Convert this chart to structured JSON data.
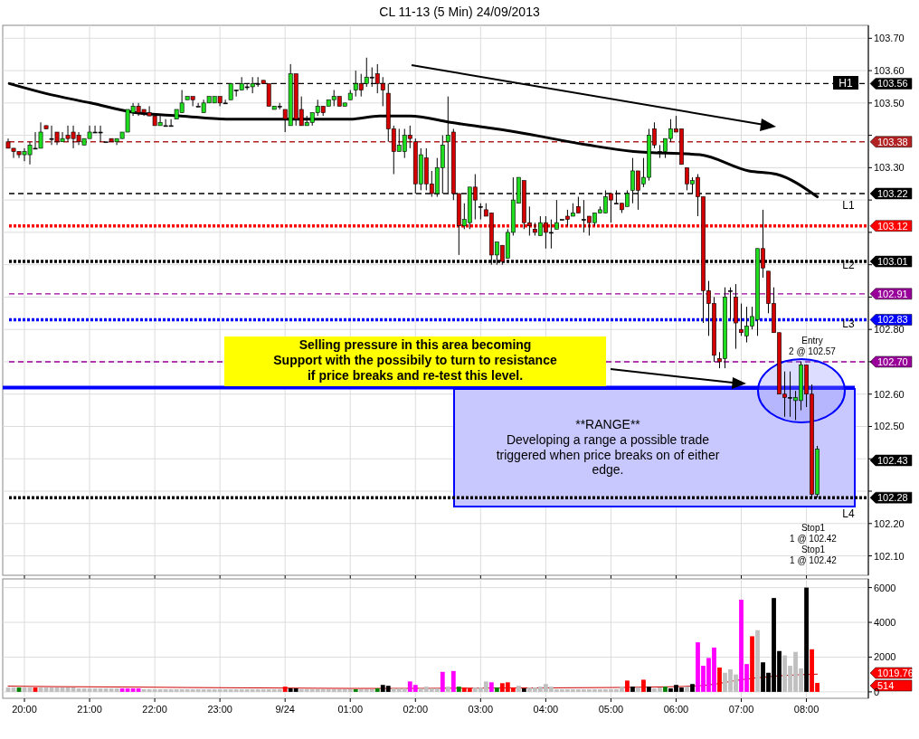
{
  "chart_data": [
    {
      "type": "candlestick",
      "title": "CL 11-13 (5 Min)  24/09/2013",
      "xlim": [
        "2013-09-23T19:40",
        "2013-09-24T08:57"
      ],
      "ylim": [
        102.04,
        103.74
      ],
      "xticks": [
        {
          "value": "2013-09-23T20:00",
          "label": null
        },
        {
          "value": "2013-09-23T21:00",
          "label": null
        },
        {
          "value": "2013-09-23T22:00",
          "label": null
        },
        {
          "value": "2013-09-23T23:00",
          "label": null
        },
        {
          "value": "2013-09-24T00:00",
          "label": null
        },
        {
          "value": "2013-09-24T01:00",
          "label": null
        },
        {
          "value": "2013-09-24T02:00",
          "label": null
        },
        {
          "value": "2013-09-24T03:00",
          "label": null
        },
        {
          "value": "2013-09-24T04:00",
          "label": null
        },
        {
          "value": "2013-09-24T05:00",
          "label": null
        },
        {
          "value": "2013-09-24T06:00",
          "label": null
        },
        {
          "value": "2013-09-24T07:00",
          "label": null
        },
        {
          "value": "2013-09-24T08:00",
          "label": null
        }
      ],
      "yticks": [
        {
          "value": 102.1,
          "label": "102.10"
        },
        {
          "value": 102.2,
          "label": "102.20"
        },
        {
          "value": 102.3,
          "label": null
        },
        {
          "value": 102.4,
          "label": null
        },
        {
          "value": 102.5,
          "label": "102.50"
        },
        {
          "value": 102.6,
          "label": "102.60"
        },
        {
          "value": 102.7,
          "label": null
        },
        {
          "value": 102.8,
          "label": "102.80"
        },
        {
          "value": 102.9,
          "label": null
        },
        {
          "value": 103.0,
          "label": null
        },
        {
          "value": 103.1,
          "label": null
        },
        {
          "value": 103.2,
          "label": null
        },
        {
          "value": 103.3,
          "label": "103.30"
        },
        {
          "value": 103.4,
          "label": null
        },
        {
          "value": 103.5,
          "label": "103.50"
        },
        {
          "value": 103.6,
          "label": "103.60"
        },
        {
          "value": 103.7,
          "label": "103.70"
        }
      ],
      "tick_labels": "y",
      "grid": true,
      "x": [
        "2013-09-23T19:45",
        "2013-09-23T19:50",
        "2013-09-23T19:55",
        "2013-09-23T20:00",
        "2013-09-23T20:05",
        "2013-09-23T20:10",
        "2013-09-23T20:15",
        "2013-09-23T20:20",
        "2013-09-23T20:25",
        "2013-09-23T20:30",
        "2013-09-23T20:35",
        "2013-09-23T20:40",
        "2013-09-23T20:45",
        "2013-09-23T20:50",
        "2013-09-23T20:55",
        "2013-09-23T21:00",
        "2013-09-23T21:05",
        "2013-09-23T21:10",
        "2013-09-23T21:15",
        "2013-09-23T21:20",
        "2013-09-23T21:25",
        "2013-09-23T21:30",
        "2013-09-23T21:35",
        "2013-09-23T21:40",
        "2013-09-23T21:45",
        "2013-09-23T21:50",
        "2013-09-23T21:55",
        "2013-09-23T22:00",
        "2013-09-23T22:05",
        "2013-09-23T22:10",
        "2013-09-23T22:15",
        "2013-09-23T22:20",
        "2013-09-23T22:25",
        "2013-09-23T22:30",
        "2013-09-23T22:35",
        "2013-09-23T22:40",
        "2013-09-23T22:45",
        "2013-09-23T22:50",
        "2013-09-23T22:55",
        "2013-09-23T23:00",
        "2013-09-23T23:05",
        "2013-09-23T23:10",
        "2013-09-23T23:15",
        "2013-09-23T23:20",
        "2013-09-23T23:25",
        "2013-09-23T23:30",
        "2013-09-23T23:35",
        "2013-09-23T23:40",
        "2013-09-23T23:45",
        "2013-09-23T23:50",
        "2013-09-23T23:55",
        "2013-09-24T00:00",
        "2013-09-24T00:05",
        "2013-09-24T00:10",
        "2013-09-24T00:15",
        "2013-09-24T00:20",
        "2013-09-24T00:25",
        "2013-09-24T00:30",
        "2013-09-24T00:35",
        "2013-09-24T00:40",
        "2013-09-24T00:45",
        "2013-09-24T00:50",
        "2013-09-24T00:55",
        "2013-09-24T01:00",
        "2013-09-24T01:05",
        "2013-09-24T01:10",
        "2013-09-24T01:15",
        "2013-09-24T01:20",
        "2013-09-24T01:25",
        "2013-09-24T01:30",
        "2013-09-24T01:35",
        "2013-09-24T01:40",
        "2013-09-24T01:45",
        "2013-09-24T01:50",
        "2013-09-24T01:55",
        "2013-09-24T02:00",
        "2013-09-24T02:05",
        "2013-09-24T02:10",
        "2013-09-24T02:15",
        "2013-09-24T02:20",
        "2013-09-24T02:25",
        "2013-09-24T02:30",
        "2013-09-24T02:35",
        "2013-09-24T02:40",
        "2013-09-24T02:45",
        "2013-09-24T02:50",
        "2013-09-24T02:55",
        "2013-09-24T03:00",
        "2013-09-24T03:05",
        "2013-09-24T03:10",
        "2013-09-24T03:15",
        "2013-09-24T03:20",
        "2013-09-24T03:25",
        "2013-09-24T03:30",
        "2013-09-24T03:35",
        "2013-09-24T03:40",
        "2013-09-24T03:45",
        "2013-09-24T03:50",
        "2013-09-24T03:55",
        "2013-09-24T04:00",
        "2013-09-24T04:05",
        "2013-09-24T04:10",
        "2013-09-24T04:15",
        "2013-09-24T04:20",
        "2013-09-24T04:25",
        "2013-09-24T04:30",
        "2013-09-24T04:35",
        "2013-09-24T04:40",
        "2013-09-24T04:45",
        "2013-09-24T04:50",
        "2013-09-24T04:55",
        "2013-09-24T05:00",
        "2013-09-24T05:05",
        "2013-09-24T05:10",
        "2013-09-24T05:15",
        "2013-09-24T05:20",
        "2013-09-24T05:25",
        "2013-09-24T05:30",
        "2013-09-24T05:35",
        "2013-09-24T05:40",
        "2013-09-24T05:45",
        "2013-09-24T05:50",
        "2013-09-24T05:55",
        "2013-09-24T06:00",
        "2013-09-24T06:05",
        "2013-09-24T06:10",
        "2013-09-24T06:15",
        "2013-09-24T06:20",
        "2013-09-24T06:25",
        "2013-09-24T06:30",
        "2013-09-24T06:35",
        "2013-09-24T06:40",
        "2013-09-24T06:45",
        "2013-09-24T06:50",
        "2013-09-24T06:55",
        "2013-09-24T07:00",
        "2013-09-24T07:05",
        "2013-09-24T07:10",
        "2013-09-24T07:15",
        "2013-09-24T07:20",
        "2013-09-24T07:25",
        "2013-09-24T07:30",
        "2013-09-24T07:35",
        "2013-09-24T07:40",
        "2013-09-24T07:45",
        "2013-09-24T07:50",
        "2013-09-24T07:55",
        "2013-09-24T08:00",
        "2013-09-24T08:05",
        "2013-09-24T08:10"
      ],
      "ohlc": [
        [
          103.38,
          103.39,
          103.36,
          103.36
        ],
        [
          103.36,
          103.36,
          103.33,
          103.35
        ],
        [
          103.35,
          103.35,
          103.33,
          103.34
        ],
        [
          103.34,
          103.36,
          103.32,
          103.35
        ],
        [
          103.34,
          103.38,
          103.31,
          103.37
        ],
        [
          103.36,
          103.41,
          103.36,
          103.36
        ],
        [
          103.36,
          103.44,
          103.36,
          103.41
        ],
        [
          103.43,
          103.43,
          103.42,
          103.42
        ],
        [
          103.39,
          103.43,
          103.37,
          103.39
        ],
        [
          103.41,
          103.41,
          103.37,
          103.38
        ],
        [
          103.38,
          103.41,
          103.38,
          103.39
        ],
        [
          103.4,
          103.43,
          103.38,
          103.39
        ],
        [
          103.41,
          103.43,
          103.36,
          103.39
        ],
        [
          103.4,
          103.41,
          103.37,
          103.38
        ],
        [
          103.37,
          103.39,
          103.37,
          103.39
        ],
        [
          103.39,
          103.43,
          103.39,
          103.41
        ],
        [
          103.41,
          103.43,
          103.41,
          103.41
        ],
        [
          103.41,
          103.43,
          103.38,
          103.41
        ],
        [
          103.38,
          103.38,
          103.38,
          103.38
        ],
        [
          103.39,
          103.39,
          103.38,
          103.38
        ],
        [
          103.38,
          103.39,
          103.37,
          103.39
        ],
        [
          103.39,
          103.41,
          103.39,
          103.41
        ],
        [
          103.41,
          103.48,
          103.41,
          103.48
        ],
        [
          103.47,
          103.5,
          103.46,
          103.49
        ],
        [
          103.49,
          103.5,
          103.46,
          103.47
        ],
        [
          103.48,
          103.48,
          103.46,
          103.47
        ],
        [
          103.47,
          103.49,
          103.46,
          103.46
        ],
        [
          103.46,
          103.46,
          103.43,
          103.43
        ],
        [
          103.43,
          103.46,
          103.43,
          103.44
        ],
        [
          103.43,
          103.45,
          103.43,
          103.43
        ],
        [
          103.43,
          103.45,
          103.43,
          103.43
        ],
        [
          103.45,
          103.48,
          103.45,
          103.48
        ],
        [
          103.47,
          103.54,
          103.47,
          103.5
        ],
        [
          103.51,
          103.52,
          103.51,
          103.52
        ],
        [
          103.52,
          103.52,
          103.49,
          103.51
        ],
        [
          103.49,
          103.5,
          103.49,
          103.49
        ],
        [
          103.47,
          103.51,
          103.47,
          103.5
        ],
        [
          103.5,
          103.52,
          103.5,
          103.52
        ],
        [
          103.5,
          103.52,
          103.5,
          103.52
        ],
        [
          103.52,
          103.52,
          103.49,
          103.5
        ],
        [
          103.5,
          103.51,
          103.5,
          103.5
        ],
        [
          103.51,
          103.56,
          103.51,
          103.56
        ],
        [
          103.54,
          103.54,
          103.52,
          103.54
        ],
        [
          103.54,
          103.58,
          103.54,
          103.56
        ],
        [
          103.55,
          103.56,
          103.54,
          103.55
        ],
        [
          103.55,
          103.58,
          103.53,
          103.56
        ],
        [
          103.56,
          103.58,
          103.55,
          103.56
        ],
        [
          103.57,
          103.57,
          103.56,
          103.56
        ],
        [
          103.56,
          103.56,
          103.49,
          103.49
        ],
        [
          103.48,
          103.49,
          103.48,
          103.49
        ],
        [
          103.49,
          103.5,
          103.48,
          103.49
        ],
        [
          103.48,
          103.48,
          103.41,
          103.45
        ],
        [
          103.43,
          103.62,
          103.43,
          103.59
        ],
        [
          103.59,
          103.59,
          103.43,
          103.45
        ],
        [
          103.48,
          103.52,
          103.43,
          103.43
        ],
        [
          103.43,
          103.46,
          103.43,
          103.44
        ],
        [
          103.44,
          103.47,
          103.43,
          103.47
        ],
        [
          103.47,
          103.51,
          103.46,
          103.49
        ],
        [
          103.49,
          103.49,
          103.46,
          103.47
        ],
        [
          103.49,
          103.51,
          103.49,
          103.51
        ],
        [
          103.51,
          103.54,
          103.49,
          103.52
        ],
        [
          103.52,
          103.52,
          103.49,
          103.49
        ],
        [
          103.49,
          103.5,
          103.49,
          103.5
        ],
        [
          103.51,
          103.54,
          103.51,
          103.53
        ],
        [
          103.54,
          103.6,
          103.52,
          103.56
        ],
        [
          103.56,
          103.59,
          103.52,
          103.54
        ],
        [
          103.56,
          103.64,
          103.55,
          103.58
        ],
        [
          103.58,
          103.61,
          103.55,
          103.58
        ],
        [
          103.59,
          103.62,
          103.53,
          103.56
        ],
        [
          103.56,
          103.58,
          103.49,
          103.54
        ],
        [
          103.53,
          103.56,
          103.38,
          103.42
        ],
        [
          103.42,
          103.43,
          103.28,
          103.35
        ],
        [
          103.35,
          103.42,
          103.35,
          103.37
        ],
        [
          103.35,
          103.42,
          103.33,
          103.4
        ],
        [
          103.4,
          103.43,
          103.36,
          103.39
        ],
        [
          103.38,
          103.39,
          103.22,
          103.25
        ],
        [
          103.25,
          103.36,
          103.23,
          103.34
        ],
        [
          103.33,
          103.36,
          103.23,
          103.25
        ],
        [
          103.25,
          103.29,
          103.21,
          103.22
        ],
        [
          103.22,
          103.33,
          103.21,
          103.3
        ],
        [
          103.3,
          103.4,
          103.22,
          103.37
        ],
        [
          103.38,
          103.52,
          103.22,
          103.4
        ],
        [
          103.41,
          103.42,
          103.2,
          103.22
        ],
        [
          103.22,
          103.22,
          103.03,
          103.12
        ],
        [
          103.12,
          103.19,
          103.11,
          103.14
        ],
        [
          103.13,
          103.24,
          103.11,
          103.24
        ],
        [
          103.24,
          103.28,
          103.14,
          103.2
        ],
        [
          103.18,
          103.19,
          103.14,
          103.18
        ],
        [
          103.17,
          103.19,
          103.15,
          103.15
        ],
        [
          103.16,
          103.16,
          103.0,
          103.03
        ],
        [
          103.03,
          103.07,
          103.0,
          103.07
        ],
        [
          103.06,
          103.06,
          103.0,
          103.01
        ],
        [
          103.02,
          103.11,
          103.02,
          103.1
        ],
        [
          103.1,
          103.27,
          103.09,
          103.2
        ],
        [
          103.19,
          103.27,
          103.19,
          103.27
        ],
        [
          103.26,
          103.26,
          103.11,
          103.13
        ],
        [
          103.13,
          103.18,
          103.09,
          103.12
        ],
        [
          103.11,
          103.13,
          103.09,
          103.1
        ],
        [
          103.09,
          103.15,
          103.09,
          103.13
        ],
        [
          103.13,
          103.15,
          103.05,
          103.1
        ],
        [
          103.1,
          103.14,
          103.05,
          103.1
        ],
        [
          103.11,
          103.2,
          103.11,
          103.13
        ],
        [
          103.14,
          103.14,
          103.14,
          103.14
        ],
        [
          103.15,
          103.17,
          103.12,
          103.14
        ],
        [
          103.15,
          103.19,
          103.15,
          103.16
        ],
        [
          103.18,
          103.21,
          103.16,
          103.16
        ],
        [
          103.14,
          103.2,
          103.1,
          103.14
        ],
        [
          103.15,
          103.15,
          103.09,
          103.13
        ],
        [
          103.13,
          103.16,
          103.12,
          103.16
        ],
        [
          103.16,
          103.18,
          103.16,
          103.17
        ],
        [
          103.16,
          103.23,
          103.16,
          103.21
        ],
        [
          103.22,
          103.22,
          103.13,
          103.2
        ],
        [
          103.19,
          103.23,
          103.19,
          103.19
        ],
        [
          103.19,
          103.19,
          103.16,
          103.17
        ],
        [
          103.18,
          103.23,
          103.18,
          103.22
        ],
        [
          103.23,
          103.33,
          103.19,
          103.29
        ],
        [
          103.29,
          103.29,
          103.17,
          103.23
        ],
        [
          103.25,
          103.33,
          103.24,
          103.27
        ],
        [
          103.27,
          103.42,
          103.26,
          103.4
        ],
        [
          103.42,
          103.44,
          103.36,
          103.37
        ],
        [
          103.35,
          103.37,
          103.33,
          103.35
        ],
        [
          103.35,
          103.39,
          103.33,
          103.39
        ],
        [
          103.39,
          103.45,
          103.38,
          103.42
        ],
        [
          103.42,
          103.46,
          103.41,
          103.41
        ],
        [
          103.42,
          103.42,
          103.31,
          103.31
        ],
        [
          103.3,
          103.3,
          103.23,
          103.25
        ],
        [
          103.25,
          103.27,
          103.22,
          103.26
        ],
        [
          103.27,
          103.28,
          103.15,
          103.21
        ],
        [
          103.21,
          103.21,
          102.82,
          102.92
        ],
        [
          102.92,
          102.95,
          102.78,
          102.88
        ],
        [
          102.88,
          102.9,
          102.7,
          102.72
        ],
        [
          102.71,
          102.73,
          102.68,
          102.7
        ],
        [
          102.71,
          102.93,
          102.68,
          102.9
        ],
        [
          102.92,
          102.93,
          102.83,
          102.92
        ],
        [
          102.9,
          102.94,
          102.74,
          102.82
        ],
        [
          102.8,
          102.88,
          102.78,
          102.79
        ],
        [
          102.78,
          102.87,
          102.76,
          102.81
        ],
        [
          102.81,
          102.87,
          102.8,
          102.84
        ],
        [
          102.83,
          103.05,
          102.78,
          103.05
        ],
        [
          103.05,
          103.17,
          102.96,
          102.99
        ],
        [
          102.98,
          102.98,
          102.85,
          102.88
        ],
        [
          102.88,
          102.93,
          102.79,
          102.79
        ],
        [
          102.79,
          102.79,
          102.6,
          102.6
        ],
        [
          102.6,
          102.67,
          102.53,
          102.59
        ],
        [
          102.59,
          102.67,
          102.53,
          102.59
        ],
        [
          102.58,
          102.61,
          102.52,
          102.59
        ],
        [
          102.58,
          102.7,
          102.55,
          102.69
        ],
        [
          102.69,
          102.69,
          102.56,
          102.6
        ],
        [
          102.6,
          102.63,
          102.28,
          102.29
        ],
        [
          102.29,
          102.44,
          102.28,
          102.43
        ]
      ],
      "series": [
        {
          "type": "line",
          "color": "#000000",
          "x": [
            "2013-09-23T19:46",
            "2013-09-23T20:19",
            "2013-09-23T21:01",
            "2013-09-23T21:42",
            "2013-09-23T22:24",
            "2013-09-23T23:06",
            "2013-09-23T23:48",
            "2013-09-24T01:00",
            "2013-09-24T01:27",
            "2013-09-24T01:55",
            "2013-09-24T02:32",
            "2013-09-24T03:33",
            "2013-09-24T04:39",
            "2013-09-24T05:21",
            "2013-09-24T06:22",
            "2013-09-24T07:07",
            "2013-09-24T07:32",
            "2013-09-24T08:10"
          ],
          "values": [
            103.56,
            103.53,
            103.5,
            103.47,
            103.46,
            103.45,
            103.45,
            103.45,
            103.46,
            103.46,
            103.44,
            103.41,
            103.37,
            103.35,
            103.34,
            103.29,
            103.28,
            103.21
          ]
        }
      ],
      "ref_lines": [
        {
          "axis": "y",
          "value": 103.56,
          "label": "103.56",
          "color": "#000000",
          "line_style": "dashed"
        },
        {
          "axis": "y",
          "value": 103.38,
          "label": "103.38",
          "color": "#b22222",
          "line_style": "dashed"
        },
        {
          "axis": "y",
          "value": 103.22,
          "label": "103.22",
          "color": "#000000",
          "line_style": "dashed"
        },
        {
          "axis": "y",
          "value": 103.12,
          "label": "103.12",
          "color": "#ff0000",
          "line_style": "dotted"
        },
        {
          "axis": "y",
          "value": 103.01,
          "label": "103.01",
          "color": "#000000",
          "line_style": "dotted"
        },
        {
          "axis": "y",
          "value": 102.91,
          "label": "102.91",
          "color": "#990099",
          "line_style": "dashed"
        },
        {
          "axis": "y",
          "value": 102.83,
          "label": "102.83",
          "color": "#0000ff",
          "line_style": "dotted"
        },
        {
          "axis": "y",
          "value": 102.7,
          "label": "102.70",
          "color": "#990099",
          "line_style": "dashed"
        },
        {
          "axis": "y",
          "value": 102.62,
          "color": "#0000ff",
          "line_style": "solid"
        },
        {
          "axis": "y",
          "value": 102.28,
          "label": "102.28",
          "color": "#000000",
          "line_style": "dotted"
        }
      ],
      "annotations": [
        "Selling pressure in this area becoming\nSupport with the possibily to turn to resistance\nif price breaks and re-test this level.",
        "**RANGE**\nDeveloping a range a possible trade\ntriggered when price breaks on of either\nedge.",
        "Entry\n2 @ 102.57",
        "Stop1\n1 @ 102.42\nStop1\n1 @ 102.42",
        "102.43",
        "H1",
        "L1",
        "L2",
        "L3",
        "L4"
      ]
    },
    {
      "type": "bar",
      "xlim": [
        "2013-09-23T19:40",
        "2013-09-24T08:57"
      ],
      "ylim": [
        -370,
        6500
      ],
      "yticks": [
        0,
        2000,
        4000,
        6000
      ],
      "grid": true,
      "xticks": [
        {
          "value": "2013-09-23T20:00",
          "label": "20:00"
        },
        {
          "value": "2013-09-23T21:00",
          "label": "21:00"
        },
        {
          "value": "2013-09-23T22:00",
          "label": "22:00"
        },
        {
          "value": "2013-09-23T23:00",
          "label": "23:00"
        },
        {
          "value": "2013-09-24T00:00",
          "label": "9/24"
        },
        {
          "value": "2013-09-24T01:00",
          "label": "01:00"
        },
        {
          "value": "2013-09-24T02:00",
          "label": "02:00"
        },
        {
          "value": "2013-09-24T03:00",
          "label": "03:00"
        },
        {
          "value": "2013-09-24T04:00",
          "label": "04:00"
        },
        {
          "value": "2013-09-24T05:00",
          "label": "05:00"
        },
        {
          "value": "2013-09-24T06:00",
          "label": "06:00"
        },
        {
          "value": "2013-09-24T07:00",
          "label": "07:00"
        },
        {
          "value": "2013-09-24T08:00",
          "label": "08:00"
        }
      ],
      "x": [
        "2013-09-23T19:45",
        "2013-09-23T19:50",
        "2013-09-23T19:55",
        "2013-09-23T20:00",
        "2013-09-23T20:05",
        "2013-09-23T20:10",
        "2013-09-23T20:15",
        "2013-09-23T20:20",
        "2013-09-23T20:25",
        "2013-09-23T20:30",
        "2013-09-23T20:35",
        "2013-09-23T20:40",
        "2013-09-23T20:45",
        "2013-09-23T20:50",
        "2013-09-23T20:55",
        "2013-09-23T21:00",
        "2013-09-23T21:05",
        "2013-09-23T21:10",
        "2013-09-23T21:15",
        "2013-09-23T21:20",
        "2013-09-23T21:25",
        "2013-09-23T21:30",
        "2013-09-23T21:35",
        "2013-09-23T21:40",
        "2013-09-23T21:45",
        "2013-09-23T21:50",
        "2013-09-23T21:55",
        "2013-09-23T22:00",
        "2013-09-23T22:05",
        "2013-09-23T22:10",
        "2013-09-23T22:15",
        "2013-09-23T22:20",
        "2013-09-23T22:25",
        "2013-09-23T22:30",
        "2013-09-23T22:35",
        "2013-09-23T22:40",
        "2013-09-23T22:45",
        "2013-09-23T22:50",
        "2013-09-23T22:55",
        "2013-09-23T23:00",
        "2013-09-23T23:05",
        "2013-09-23T23:10",
        "2013-09-23T23:15",
        "2013-09-23T23:20",
        "2013-09-23T23:25",
        "2013-09-23T23:30",
        "2013-09-23T23:35",
        "2013-09-23T23:40",
        "2013-09-23T23:45",
        "2013-09-23T23:50",
        "2013-09-23T23:55",
        "2013-09-24T00:00",
        "2013-09-24T00:05",
        "2013-09-24T00:10",
        "2013-09-24T00:15",
        "2013-09-24T00:20",
        "2013-09-24T00:25",
        "2013-09-24T00:30",
        "2013-09-24T00:35",
        "2013-09-24T00:40",
        "2013-09-24T00:45",
        "2013-09-24T00:50",
        "2013-09-24T00:55",
        "2013-09-24T01:00",
        "2013-09-24T01:05",
        "2013-09-24T01:10",
        "2013-09-24T01:15",
        "2013-09-24T01:20",
        "2013-09-24T01:25",
        "2013-09-24T01:30",
        "2013-09-24T01:35",
        "2013-09-24T01:40",
        "2013-09-24T01:45",
        "2013-09-24T01:50",
        "2013-09-24T01:55",
        "2013-09-24T02:00",
        "2013-09-24T02:05",
        "2013-09-24T02:10",
        "2013-09-24T02:15",
        "2013-09-24T02:20",
        "2013-09-24T02:25",
        "2013-09-24T02:30",
        "2013-09-24T02:35",
        "2013-09-24T02:40",
        "2013-09-24T02:45",
        "2013-09-24T02:50",
        "2013-09-24T02:55",
        "2013-09-24T03:00",
        "2013-09-24T03:05",
        "2013-09-24T03:10",
        "2013-09-24T03:15",
        "2013-09-24T03:20",
        "2013-09-24T03:25",
        "2013-09-24T03:30",
        "2013-09-24T03:35",
        "2013-09-24T03:40",
        "2013-09-24T03:45",
        "2013-09-24T03:50",
        "2013-09-24T03:55",
        "2013-09-24T04:00",
        "2013-09-24T04:05",
        "2013-09-24T04:10",
        "2013-09-24T04:15",
        "2013-09-24T04:20",
        "2013-09-24T04:25",
        "2013-09-24T04:30",
        "2013-09-24T04:35",
        "2013-09-24T04:40",
        "2013-09-24T04:45",
        "2013-09-24T04:50",
        "2013-09-24T04:55",
        "2013-09-24T05:00",
        "2013-09-24T05:05",
        "2013-09-24T05:10",
        "2013-09-24T05:15",
        "2013-09-24T05:20",
        "2013-09-24T05:25",
        "2013-09-24T05:30",
        "2013-09-24T05:35",
        "2013-09-24T05:40",
        "2013-09-24T05:45",
        "2013-09-24T05:50",
        "2013-09-24T05:55",
        "2013-09-24T06:00",
        "2013-09-24T06:05",
        "2013-09-24T06:10",
        "2013-09-24T06:15",
        "2013-09-24T06:20",
        "2013-09-24T06:25",
        "2013-09-24T06:30",
        "2013-09-24T06:35",
        "2013-09-24T06:40",
        "2013-09-24T06:45",
        "2013-09-24T06:50",
        "2013-09-24T06:55",
        "2013-09-24T07:00",
        "2013-09-24T07:05",
        "2013-09-24T07:10",
        "2013-09-24T07:15",
        "2013-09-24T07:20",
        "2013-09-24T07:25",
        "2013-09-24T07:30",
        "2013-09-24T07:35",
        "2013-09-24T07:40",
        "2013-09-24T07:45",
        "2013-09-24T07:50",
        "2013-09-24T07:55",
        "2013-09-24T08:00",
        "2013-09-24T08:05",
        "2013-09-24T08:10"
      ],
      "values": [
        250,
        250,
        250,
        250,
        250,
        250,
        250,
        250,
        250,
        250,
        250,
        250,
        250,
        200,
        200,
        200,
        200,
        200,
        200,
        200,
        200,
        200,
        200,
        200,
        200,
        150,
        150,
        150,
        150,
        150,
        150,
        150,
        150,
        150,
        150,
        150,
        150,
        150,
        150,
        150,
        150,
        150,
        150,
        150,
        150,
        150,
        150,
        150,
        150,
        150,
        150,
        300,
        200,
        200,
        150,
        150,
        150,
        150,
        150,
        150,
        150,
        150,
        150,
        150,
        150,
        150,
        150,
        150,
        200,
        400,
        350,
        200,
        200,
        200,
        600,
        400,
        200,
        300,
        200,
        200,
        1150,
        300,
        1200,
        300,
        250,
        200,
        250,
        250,
        600,
        550,
        250,
        500,
        550,
        250,
        350,
        200,
        250,
        250,
        300,
        450,
        300,
        150,
        150,
        150,
        150,
        150,
        150,
        150,
        150,
        150,
        150,
        150,
        150,
        300,
        650,
        300,
        250,
        700,
        300,
        200,
        250,
        300,
        200,
        400,
        250,
        300,
        450,
        2850,
        1500,
        1950,
        2550,
        1400,
        1100,
        1300,
        1000,
        5300,
        1600,
        3200,
        3550,
        1700,
        1100,
        5400,
        2350,
        2100,
        1500,
        2300,
        1350,
        6000,
        2450,
        514
      ],
      "colors": [
        "#c0c0c0",
        "#c0c0c0",
        "#008000",
        "#c0c0c0",
        "#c0c0c0",
        "#ff0000",
        "#c0c0c0",
        "#c0c0c0",
        "#c0c0c0",
        "#c0c0c0",
        "#c0c0c0",
        "#c0c0c0",
        "#c0c0c0",
        "#c0c0c0",
        "#c0c0c0",
        "#c0c0c0",
        "#c0c0c0",
        "#c0c0c0",
        "#c0c0c0",
        "#c0c0c0",
        "#c0c0c0",
        "#ff00ff",
        "#ff00ff",
        "#ff00ff",
        "#ff00ff",
        "#c0c0c0",
        "#c0c0c0",
        "#c0c0c0",
        "#c0c0c0",
        "#c0c0c0",
        "#c0c0c0",
        "#c0c0c0",
        "#c0c0c0",
        "#c0c0c0",
        "#c0c0c0",
        "#c0c0c0",
        "#c0c0c0",
        "#c0c0c0",
        "#c0c0c0",
        "#c0c0c0",
        "#c0c0c0",
        "#c0c0c0",
        "#c0c0c0",
        "#c0c0c0",
        "#c0c0c0",
        "#c0c0c0",
        "#c0c0c0",
        "#c0c0c0",
        "#c0c0c0",
        "#c0c0c0",
        "#c0c0c0",
        "#ff0000",
        "#000000",
        "#000000",
        "#c0c0c0",
        "#c0c0c0",
        "#c0c0c0",
        "#c0c0c0",
        "#c0c0c0",
        "#c0c0c0",
        "#c0c0c0",
        "#c0c0c0",
        "#c0c0c0",
        "#c0c0c0",
        "#008000",
        "#c0c0c0",
        "#c0c0c0",
        "#c0c0c0",
        "#008000",
        "#000000",
        "#000000",
        "#c0c0c0",
        "#c0c0c0",
        "#c0c0c0",
        "#ff00ff",
        "#ff00ff",
        "#c0c0c0",
        "#c0c0c0",
        "#c0c0c0",
        "#c0c0c0",
        "#ff00ff",
        "#c0c0c0",
        "#ff00ff",
        "#008000",
        "#ff0000",
        "#ff0000",
        "#c0c0c0",
        "#c0c0c0",
        "#c0c0c0",
        "#ff00ff",
        "#008000",
        "#ff0000",
        "#ff0000",
        "#ff0000",
        "#c0c0c0",
        "#000000",
        "#c0c0c0",
        "#c0c0c0",
        "#c0c0c0",
        "#c0c0c0",
        "#c0c0c0",
        "#c0c0c0",
        "#c0c0c0",
        "#c0c0c0",
        "#c0c0c0",
        "#c0c0c0",
        "#c0c0c0",
        "#c0c0c0",
        "#c0c0c0",
        "#c0c0c0",
        "#c0c0c0",
        "#c0c0c0",
        "#c0c0c0",
        "#c0c0c0",
        "#ff0000",
        "#000000",
        "#c0c0c0",
        "#ff0000",
        "#000000",
        "#c0c0c0",
        "#c0c0c0",
        "#008000",
        "#000000",
        "#000000",
        "#000000",
        "#c0c0c0",
        "#000000",
        "#ff00ff",
        "#ff00ff",
        "#ff00ff",
        "#ff00ff",
        "#ff0000",
        "#c0c0c0",
        "#c0c0c0",
        "#c0c0c0",
        "#ff00ff",
        "#ff00ff",
        "#ff0000",
        "#c0c0c0",
        "#000000",
        "#000000",
        "#000000",
        "#000000",
        "#c0c0c0",
        "#c0c0c0",
        "#c0c0c0",
        "#c0c0c0",
        "#000000",
        "#ff0000",
        "#ff0000"
      ],
      "series": [
        {
          "type": "line",
          "color": "#cc0000",
          "x": [
            "2013-09-23T19:45",
            "2013-09-23T20:30",
            "2013-09-23T21:30",
            "2013-09-23T22:30",
            "2013-09-24T00:00",
            "2013-09-24T01:00",
            "2013-09-24T02:00",
            "2013-09-24T03:00",
            "2013-09-24T04:00",
            "2013-09-24T05:00",
            "2013-09-24T06:00",
            "2013-09-24T06:30",
            "2013-09-24T07:00",
            "2013-09-24T07:30",
            "2013-09-24T08:10"
          ],
          "values": [
            330,
            300,
            280,
            250,
            220,
            200,
            200,
            220,
            230,
            250,
            300,
            400,
            700,
            900,
            1020
          ]
        }
      ],
      "annotations": [
        "1019.76",
        "514"
      ]
    }
  ]
}
